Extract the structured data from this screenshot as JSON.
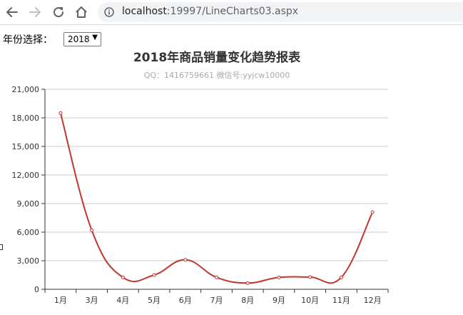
{
  "browser": {
    "url_host": "localhost",
    "url_rest": ":19997/LineCharts03.aspx"
  },
  "controls": {
    "year_label": "年份选择：",
    "year_value": "2018",
    "year_arrow": "▼"
  },
  "colors": {
    "line": "#c23531",
    "title": "#333333",
    "subtitle": "#aaaaaa",
    "grid": "#cccccc"
  },
  "chart_data": {
    "type": "line",
    "smooth": true,
    "title": "2018年商品销量变化趋势报表",
    "subtitle": "QQ：1416759661 微信号:yyjcw10000",
    "categories": [
      "1月",
      "3月",
      "4月",
      "5月",
      "6月",
      "7月",
      "8月",
      "9月",
      "10月",
      "11月",
      "12月"
    ],
    "series": [
      {
        "values": [
          18500,
          6200,
          1250,
          1500,
          3100,
          1250,
          650,
          1250,
          1280,
          1250,
          8100
        ]
      }
    ],
    "yticks": [
      "0",
      "3,000",
      "6,000",
      "9,000",
      "12,000",
      "15,000",
      "18,000",
      "21,000"
    ],
    "ylim": [
      0,
      21000
    ],
    "grid": true,
    "legend": "none"
  }
}
